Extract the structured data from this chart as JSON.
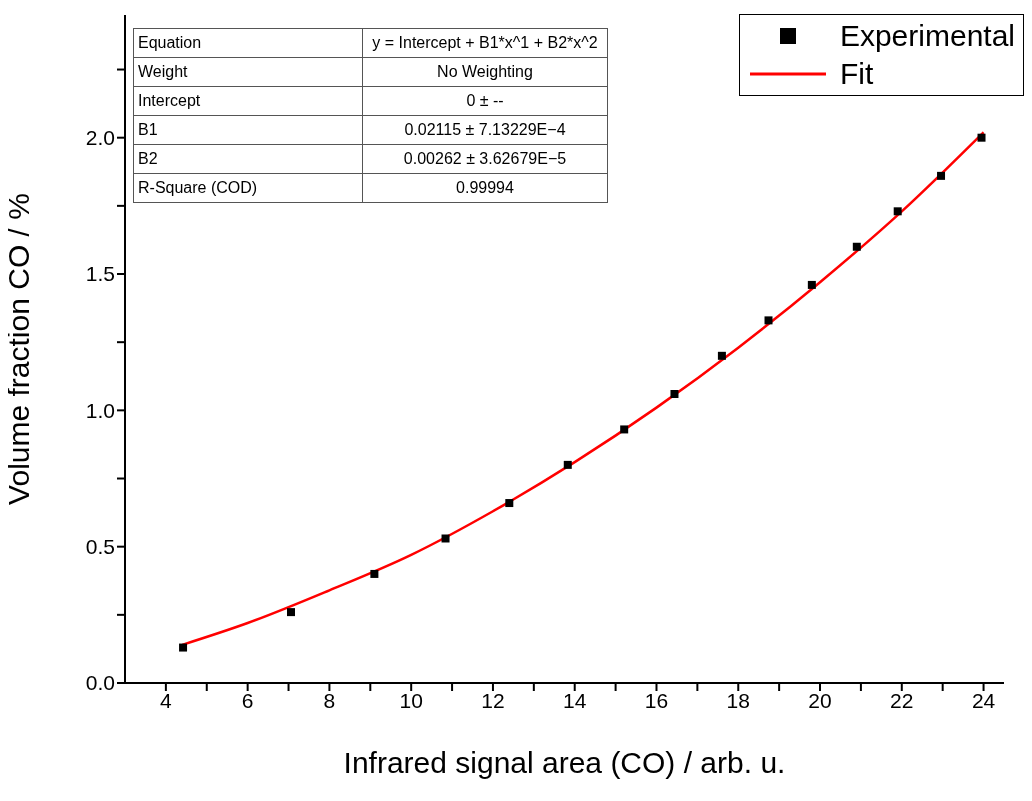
{
  "chart_data": {
    "type": "scatter",
    "xlabel": "Infrared signal area (CO) / arb. u.",
    "ylabel": "Volume fraction CO / %",
    "xlim": [
      3,
      24.5
    ],
    "xticks": [
      4,
      {
        "value": 5,
        "label": null
      },
      6,
      {
        "value": 7,
        "label": null
      },
      8,
      {
        "value": 9,
        "label": null
      },
      10,
      {
        "value": 11,
        "label": null
      },
      12,
      {
        "value": 13,
        "label": null
      },
      14,
      {
        "value": 15,
        "label": null
      },
      16,
      {
        "value": 17,
        "label": null
      },
      18,
      {
        "value": 19,
        "label": null
      },
      20,
      {
        "value": 21,
        "label": null
      },
      22,
      {
        "value": 23,
        "label": null
      },
      24
    ],
    "ylim": [
      0,
      2.45
    ],
    "yticks": [
      {
        "value": 0,
        "label": "0.0"
      },
      {
        "value": 0.25,
        "label": null
      },
      0.5,
      {
        "value": 0.75,
        "label": null
      },
      {
        "value": 1,
        "label": "1.0"
      },
      {
        "value": 1.25,
        "label": null
      },
      1.5,
      {
        "value": 1.75,
        "label": null
      },
      {
        "value": 2,
        "label": "2.0"
      },
      {
        "value": 2.25,
        "label": null
      }
    ],
    "legend": "top right",
    "series": [
      {
        "name": "Experimental",
        "type": "scatter",
        "marker": "square",
        "color": "#000000",
        "x": [
          4.42,
          7.06,
          9.1,
          10.84,
          12.4,
          13.83,
          15.21,
          16.44,
          17.6,
          18.74,
          19.8,
          20.9,
          21.9,
          22.96,
          23.95
        ],
        "values": [
          0.13,
          0.26,
          0.4,
          0.53,
          0.66,
          0.8,
          0.93,
          1.06,
          1.2,
          1.33,
          1.46,
          1.6,
          1.73,
          1.86,
          2.0
        ]
      },
      {
        "name": "Fit",
        "type": "line",
        "marker": "none",
        "line_style": "solid",
        "color": "#ff0000",
        "x": [
          4.4,
          6,
          8,
          10,
          12,
          14,
          16,
          18,
          20,
          22,
          24
        ],
        "values": [
          0.14,
          0.22,
          0.34,
          0.47,
          0.63,
          0.81,
          1.01,
          1.23,
          1.47,
          1.73,
          2.02
        ]
      }
    ],
    "annotations": [
      "Equation",
      "y = Intercept + B1*x^1 + B2*x^2",
      "Weight",
      "No Weighting",
      "Intercept",
      "0 ± --",
      "B1",
      "0.02115 ± 7.13229E−4",
      "B2",
      "0.00262 ± 3.62679E−5",
      "R-Square (COD)",
      "0.99994"
    ]
  }
}
